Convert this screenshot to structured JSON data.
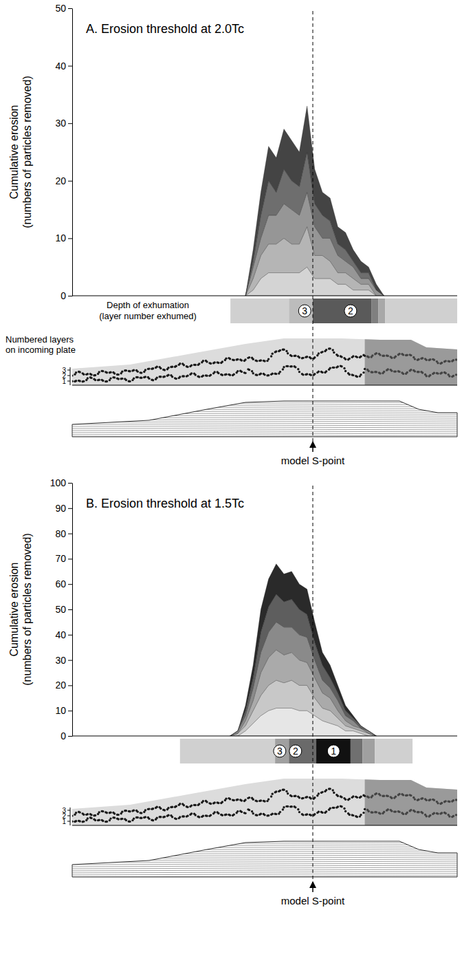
{
  "chart_data": [
    {
      "type": "area",
      "stacked": true,
      "tick_labels": "y",
      "title": "A. Erosion threshold at 2.0Tc",
      "ylabel": [
        "Cumulative erosion",
        "(numbers of particles removed)"
      ],
      "x": [
        45,
        47,
        49,
        51,
        53,
        55,
        57,
        59,
        61,
        63,
        65,
        67,
        69,
        71,
        73,
        75,
        77,
        79,
        81
      ],
      "xlim": [
        0,
        100
      ],
      "ylim": [
        0,
        50
      ],
      "yticks": [
        0,
        10,
        20,
        30,
        40,
        50
      ],
      "series": [
        {
          "color": "#d4d4d4",
          "values": [
            0,
            1,
            3,
            4,
            4,
            4,
            4,
            4,
            5,
            3,
            3,
            3,
            2,
            2,
            1,
            1,
            1,
            0,
            0
          ]
        },
        {
          "color": "#b5b5b5",
          "values": [
            0,
            2,
            4,
            5,
            5,
            6,
            5,
            5,
            7,
            4,
            4,
            3,
            2,
            2,
            2,
            1,
            1,
            0,
            0
          ]
        },
        {
          "color": "#969696",
          "values": [
            0,
            2,
            3,
            5,
            5,
            6,
            6,
            5,
            6,
            5,
            3,
            4,
            3,
            2,
            2,
            1,
            1,
            1,
            0
          ]
        },
        {
          "color": "#6e6e6e",
          "values": [
            0,
            1,
            4,
            6,
            4,
            6,
            5,
            5,
            7,
            4,
            4,
            3,
            2,
            2,
            1,
            1,
            1,
            0,
            0
          ]
        },
        {
          "color": "#444444",
          "values": [
            0,
            2,
            4,
            6,
            6,
            7,
            7,
            6,
            8,
            6,
            4,
            4,
            3,
            3,
            2,
            2,
            1,
            1,
            0
          ]
        }
      ],
      "s_point": {
        "x": 62.5,
        "label": "model S-point"
      },
      "exhumation": {
        "title": [
          "Depth of exhumation",
          "(layer number exhumed)"
        ],
        "bands": [
          {
            "x0": 41.1,
            "x1": 56.3,
            "color": "#d0d0d0"
          },
          {
            "x0": 56.3,
            "x1": 62.5,
            "color": "#bcbcbc"
          },
          {
            "x0": 62.5,
            "x1": 77.7,
            "color": "#5a5a5a"
          },
          {
            "x0": 77.7,
            "x1": 79.5,
            "color": "#808080"
          },
          {
            "x0": 79.5,
            "x1": 81.3,
            "color": "#a8a8a8"
          },
          {
            "x0": 81.3,
            "x1": 100,
            "color": "#d0d0d0"
          }
        ],
        "labels": [
          {
            "x": 60.4,
            "layer": 3
          },
          {
            "x": 72.3,
            "layer": 2
          }
        ]
      },
      "layers": {
        "title": [
          "Numbered layers",
          "on incoming plate"
        ],
        "ticks": [
          3,
          2,
          1
        ]
      }
    },
    {
      "type": "area",
      "stacked": true,
      "tick_labels": "y",
      "title": "B. Erosion threshold at 1.5Tc",
      "ylabel": [
        "Cumulative erosion",
        "(numbers of particles removed)"
      ],
      "x": [
        41,
        43,
        45,
        47,
        49,
        51,
        53,
        55,
        57,
        59,
        61,
        63,
        65,
        67,
        69,
        71,
        73,
        75,
        77,
        79
      ],
      "xlim": [
        0,
        100
      ],
      "ylim": [
        0,
        100
      ],
      "yticks": [
        0,
        10,
        20,
        30,
        40,
        50,
        60,
        70,
        80,
        90,
        100
      ],
      "series": [
        {
          "color": "#e6e6e6",
          "values": [
            0,
            0,
            2,
            5,
            8,
            10,
            11,
            11,
            11,
            10,
            10,
            8,
            6,
            5,
            4,
            2,
            2,
            1,
            0,
            0
          ]
        },
        {
          "color": "#c8c8c8",
          "values": [
            0,
            1,
            2,
            5,
            8,
            10,
            11,
            10,
            11,
            10,
            10,
            7,
            5,
            5,
            3,
            2,
            1,
            1,
            1,
            0
          ]
        },
        {
          "color": "#aaaaaa",
          "values": [
            0,
            0,
            2,
            4,
            9,
            11,
            12,
            11,
            11,
            10,
            9,
            8,
            6,
            5,
            3,
            2,
            1,
            1,
            0,
            0
          ]
        },
        {
          "color": "#8a8a8a",
          "values": [
            0,
            1,
            2,
            5,
            8,
            10,
            11,
            11,
            10,
            10,
            10,
            7,
            5,
            4,
            4,
            2,
            2,
            0,
            1,
            0
          ]
        },
        {
          "color": "#5e5e5e",
          "values": [
            0,
            0,
            2,
            4,
            8,
            10,
            11,
            10,
            11,
            10,
            9,
            7,
            6,
            4,
            3,
            2,
            1,
            1,
            0,
            0
          ]
        },
        {
          "color": "#2a2a2a",
          "values": [
            0,
            0,
            2,
            5,
            9,
            11,
            12,
            11,
            11,
            10,
            10,
            8,
            5,
            5,
            3,
            2,
            1,
            0,
            0,
            0
          ]
        }
      ],
      "s_point": {
        "x": 62.5,
        "label": "model S-point"
      },
      "exhumation": {
        "bands": [
          {
            "x0": 28.0,
            "x1": 52.7,
            "color": "#d0d0d0"
          },
          {
            "x0": 52.7,
            "x1": 56.3,
            "color": "#a0a0a0"
          },
          {
            "x0": 56.3,
            "x1": 63.4,
            "color": "#6a6a6a"
          },
          {
            "x0": 63.4,
            "x1": 72.3,
            "color": "#111111"
          },
          {
            "x0": 72.3,
            "x1": 75.4,
            "color": "#707070"
          },
          {
            "x0": 75.4,
            "x1": 78.6,
            "color": "#a0a0a0"
          },
          {
            "x0": 78.6,
            "x1": 88.4,
            "color": "#d0d0d0"
          }
        ],
        "labels": [
          {
            "x": 53.9,
            "layer": 3
          },
          {
            "x": 58.0,
            "layer": 2
          },
          {
            "x": 67.9,
            "layer": 1
          }
        ]
      },
      "layers": {
        "ticks": [
          3,
          2,
          1
        ]
      }
    }
  ]
}
